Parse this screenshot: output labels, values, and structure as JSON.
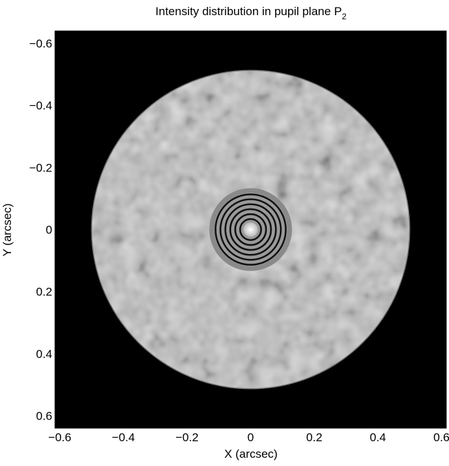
{
  "chart_data": {
    "type": "image",
    "title": "Intensity distribution in pupil plane P",
    "title_subscript": "2",
    "xlabel": "X (arcsec)",
    "ylabel": "Y (arcsec)",
    "xlim": [
      -0.615,
      0.615
    ],
    "ylim": [
      -0.64,
      0.64
    ],
    "y_inverted": true,
    "xticks": [
      {
        "value": -0.6,
        "label": "−0.6"
      },
      {
        "value": -0.4,
        "label": "−0.4"
      },
      {
        "value": -0.2,
        "label": "−0.2"
      },
      0,
      0.2,
      0.4,
      0.6
    ],
    "yticks": [
      {
        "value": -0.6,
        "label": "−0.6"
      },
      {
        "value": -0.4,
        "label": "−0.4"
      },
      {
        "value": -0.2,
        "label": "−0.2"
      },
      0,
      0.2,
      0.4,
      0.6
    ],
    "aperture_radius": 0.5,
    "colormap": "gray"
  }
}
